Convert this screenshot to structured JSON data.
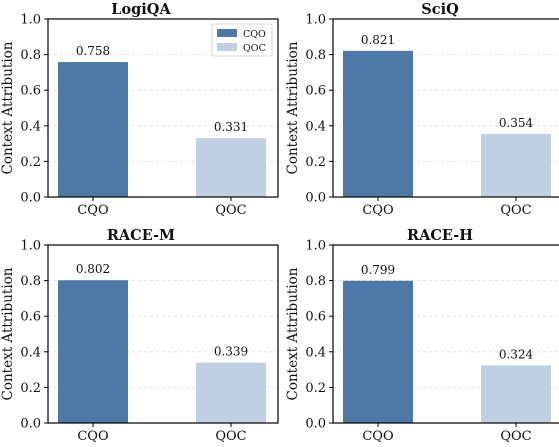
{
  "chart_data": [
    {
      "type": "bar",
      "title": "LogiQA",
      "xlabel": "",
      "ylabel": "Context Attribution",
      "categories": [
        "CQO",
        "QOC"
      ],
      "values": [
        0.758,
        0.331
      ],
      "value_labels": [
        "0.758",
        "0.331"
      ],
      "ylim": [
        0,
        1.0
      ],
      "yticks": [
        "0.0",
        "0.2",
        "0.4",
        "0.6",
        "0.8",
        "1.0"
      ],
      "grid": "y dashed",
      "legend": {
        "placement": "top-right",
        "entries": [
          "CQO",
          "QOC"
        ]
      }
    },
    {
      "type": "bar",
      "title": "SciQ",
      "xlabel": "",
      "ylabel": "Context Attribution",
      "categories": [
        "CQO",
        "QOC"
      ],
      "values": [
        0.821,
        0.354
      ],
      "value_labels": [
        "0.821",
        "0.354"
      ],
      "ylim": [
        0,
        1.0
      ],
      "yticks": [
        "0.0",
        "0.2",
        "0.4",
        "0.6",
        "0.8",
        "1.0"
      ],
      "grid": "y dashed"
    },
    {
      "type": "bar",
      "title": "RACE-M",
      "xlabel": "",
      "ylabel": "Context Attribution",
      "categories": [
        "CQO",
        "QOC"
      ],
      "values": [
        0.802,
        0.339
      ],
      "value_labels": [
        "0.802",
        "0.339"
      ],
      "ylim": [
        0,
        1.0
      ],
      "yticks": [
        "0.0",
        "0.2",
        "0.4",
        "0.6",
        "0.8",
        "1.0"
      ],
      "grid": "y dashed"
    },
    {
      "type": "bar",
      "title": "RACE-H",
      "xlabel": "",
      "ylabel": "Context Attribution",
      "categories": [
        "CQO",
        "QOC"
      ],
      "values": [
        0.799,
        0.324
      ],
      "value_labels": [
        "0.799",
        "0.324"
      ],
      "ylim": [
        0,
        1.0
      ],
      "yticks": [
        "0.0",
        "0.2",
        "0.4",
        "0.6",
        "0.8",
        "1.0"
      ],
      "grid": "y dashed"
    }
  ],
  "colors": {
    "CQO": "#4e79a7",
    "QOC": "#c0d0e2",
    "axis": "#000000",
    "grid": "#d9d9d9",
    "text": "#111111"
  }
}
